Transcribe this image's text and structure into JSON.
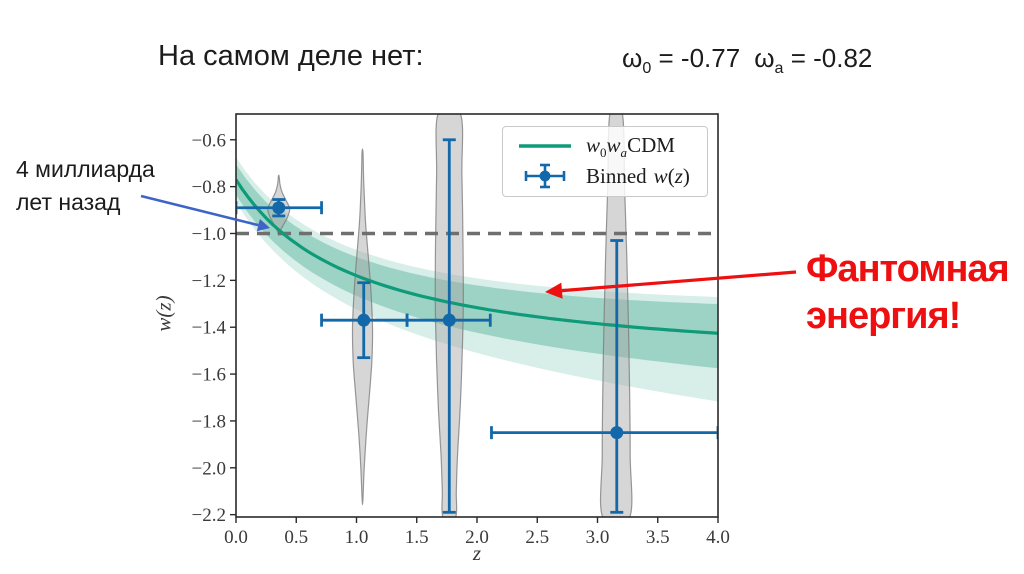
{
  "slide": {
    "title": "На самом деле нет:",
    "params": {
      "omega": "ω",
      "w0_sub": "0",
      "w0_eq": " = -0.77",
      "wa_sub": "a",
      "wa_eq": " = -0.82"
    },
    "annotation_past": {
      "line1": "4 миллиарда",
      "line2": "лет назад"
    },
    "annotation_phantom": {
      "line1": "Фантомная",
      "line2": "энергия!"
    },
    "colors": {
      "text": "#1c1c1c",
      "phantom_red": "#ee1010",
      "arrow_blue": "#3e64c8"
    }
  },
  "chart_data": {
    "type": "line",
    "title": "",
    "xlabel": "z",
    "ylabel": "w(z)",
    "xlim": [
      0,
      4
    ],
    "ylim": [
      -2.21,
      -0.49
    ],
    "grid": false,
    "legend_position": "upper right",
    "xticks": {
      "values": [
        0,
        0.5,
        1,
        1.5,
        2,
        2.5,
        3,
        3.5,
        4
      ],
      "labels": [
        "0.0",
        "0.5",
        "1.0",
        "1.5",
        "2.0",
        "2.5",
        "3.0",
        "3.5",
        "4.0"
      ]
    },
    "yticks": {
      "values": [
        -0.6,
        -0.8,
        -1.0,
        -1.2,
        -1.4,
        -1.6,
        -1.8,
        -2.0,
        -2.2
      ],
      "labels": [
        "−0.6",
        "−0.8",
        "−1.0",
        "−1.2",
        "−1.4",
        "−1.6",
        "−1.8",
        "−2.0",
        "−2.2"
      ]
    },
    "reference_line": {
      "w": -1.0,
      "style": "dashed",
      "color": "#6f6f6f"
    },
    "model_curve": {
      "legend_label_parts": {
        "w1": "w",
        "s1": "0",
        "w2": "w",
        "s2": "a",
        "tail": "CDM"
      },
      "w0": -0.77,
      "wa": -0.82,
      "formula": "w(z) = w0 + wa*z/(1+z)",
      "color": "#0f9b79"
    },
    "confidence_bands": {
      "inner": {
        "upper_offset_at_z0": 0.065,
        "upper_growth_per_z": 0.015,
        "lower_offset_at_z0": 0.065,
        "lower_growth_per_z": 0.021,
        "color": "#9dd3c5"
      },
      "outer": {
        "upper_offset_at_z0": 0.095,
        "upper_growth_per_z": 0.015,
        "lower_offset_at_z0": 0.095,
        "lower_growth_per_z": 0.049,
        "color": "#d7eee9"
      }
    },
    "binned_points": {
      "legend_label_parts": {
        "word": "Binned",
        "var": "w",
        "open": "(",
        "z": "z",
        "close": ")"
      },
      "color": "#1268a9",
      "points": [
        {
          "z": 0.355,
          "w": -0.89,
          "z_lo": 0.0,
          "z_hi": 0.71,
          "w_lo": -0.925,
          "w_hi": -0.855
        },
        {
          "z": 1.06,
          "w": -1.37,
          "z_lo": 0.71,
          "z_hi": 1.42,
          "w_lo": -1.53,
          "w_hi": -1.21
        },
        {
          "z": 1.77,
          "w": -1.37,
          "z_lo": 1.42,
          "z_hi": 2.11,
          "w_lo": -2.19,
          "w_hi": -0.6
        },
        {
          "z": 3.16,
          "w": -1.85,
          "z_lo": 2.12,
          "z_hi": 4.0,
          "w_lo": -2.19,
          "w_hi": -1.03
        }
      ]
    },
    "violins": {
      "fill": "rgba(165,165,165,0.45)",
      "edge": "rgba(120,120,120,0.75)",
      "items": [
        {
          "center_z": 0.355,
          "profile": [
            [
              -0.755,
              0.003
            ],
            [
              -0.79,
              0.01
            ],
            [
              -0.825,
              0.028
            ],
            [
              -0.86,
              0.062
            ],
            [
              -0.895,
              0.091
            ],
            [
              -0.93,
              0.072
            ],
            [
              -0.96,
              0.042
            ],
            [
              -0.985,
              0.015
            ],
            [
              -1.005,
              0.003
            ]
          ]
        },
        {
          "center_z": 1.05,
          "profile": [
            [
              -0.655,
              0.004
            ],
            [
              -0.78,
              0.01
            ],
            [
              -0.95,
              0.025
            ],
            [
              -1.1,
              0.048
            ],
            [
              -1.25,
              0.07
            ],
            [
              -1.4,
              0.083
            ],
            [
              -1.55,
              0.077
            ],
            [
              -1.7,
              0.055
            ],
            [
              -1.85,
              0.032
            ],
            [
              -2.0,
              0.014
            ],
            [
              -2.14,
              0.003
            ]
          ]
        },
        {
          "center_z": 1.77,
          "profile": [
            [
              -0.49,
              0.093
            ],
            [
              -0.75,
              0.105
            ],
            [
              -1.05,
              0.114
            ],
            [
              -1.3,
              0.116
            ],
            [
              -1.55,
              0.105
            ],
            [
              -1.75,
              0.09
            ],
            [
              -1.95,
              0.068
            ],
            [
              -2.1,
              0.058
            ],
            [
              -2.21,
              0.052
            ]
          ]
        },
        {
          "center_z": 3.155,
          "profile": [
            [
              -0.49,
              0.052
            ],
            [
              -0.8,
              0.07
            ],
            [
              -1.1,
              0.088
            ],
            [
              -1.4,
              0.102
            ],
            [
              -1.7,
              0.112
            ],
            [
              -1.95,
              0.116
            ],
            [
              -2.21,
              0.112
            ]
          ]
        }
      ]
    }
  }
}
